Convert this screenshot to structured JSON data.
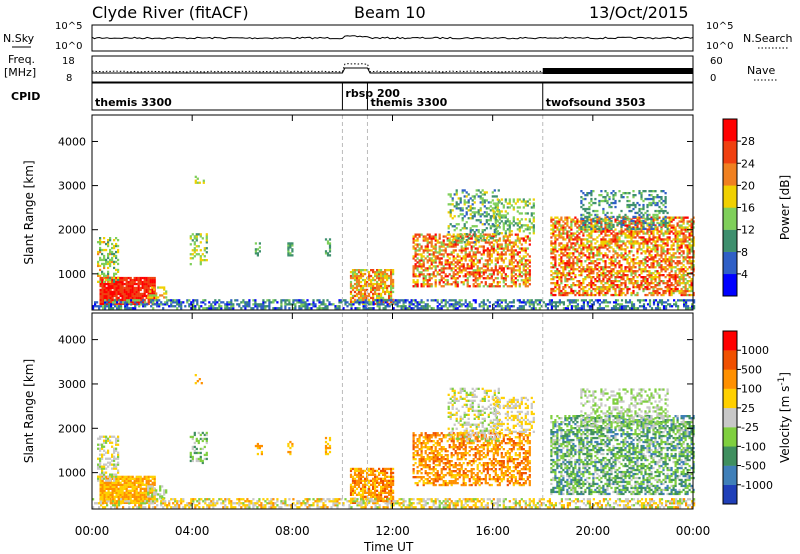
{
  "header": {
    "station": "Clyde River (fitACF)",
    "beam": "Beam 10",
    "date": "13/Oct/2015"
  },
  "noise_panel": {
    "left_label": "N.Sky",
    "right_label": "N.Search",
    "left_ticks": [
      "10^5",
      "10^0"
    ],
    "right_ticks": [
      "10^5",
      "10^0"
    ]
  },
  "freq_panel": {
    "left_label_line1": "Freq.",
    "left_label_line2": "[MHz]",
    "right_label": "Nave",
    "left_ticks": [
      "18",
      "8"
    ],
    "right_ticks": [
      "60",
      "0"
    ]
  },
  "cpid_panel": {
    "label": "CPID",
    "segments": [
      {
        "name": "themis 3300",
        "start_h": 0.0,
        "end_h": 10.0
      },
      {
        "name": "rbsp 200",
        "start_h": 10.0,
        "end_h": 11.0
      },
      {
        "name": "themis 3300",
        "start_h": 11.0,
        "end_h": 18.0
      },
      {
        "name": "twofsound 3503",
        "start_h": 18.0,
        "end_h": 24.0
      }
    ]
  },
  "chart_data": [
    {
      "type": "heatmap",
      "quantity": "power",
      "ylabel": "Slant Range [km]",
      "ylim": [
        180,
        4600
      ],
      "yticks": [
        "1000",
        "2000",
        "3000",
        "4000"
      ],
      "colorbar": {
        "label": "Power [dB]",
        "ticks": [
          "4",
          "8",
          "12",
          "16",
          "20",
          "24",
          "28"
        ],
        "colors": [
          "#0000ff",
          "#2f5fc6",
          "#3e8f6e",
          "#7fcf5a",
          "#f0d000",
          "#f08020",
          "#f04010",
          "#ff0000"
        ]
      }
    },
    {
      "type": "heatmap",
      "quantity": "velocity",
      "ylabel": "Slant Range [km]",
      "ylim": [
        180,
        4600
      ],
      "yticks": [
        "1000",
        "2000",
        "3000",
        "4000"
      ],
      "xlabel": "Time UT",
      "xticks": [
        "00:00",
        "04:00",
        "08:00",
        "12:00",
        "16:00",
        "20:00",
        "00:00"
      ],
      "colorbar": {
        "label": "Velocity [m s",
        "label_sup": "-1",
        "label_end": "]",
        "ticks": [
          "1000",
          "500",
          "100",
          "25",
          "-25",
          "-100",
          "-500",
          "-1000"
        ],
        "colors": [
          "#1f3fb8",
          "#3f7fb8",
          "#3f8f5f",
          "#7fcf3f",
          "#c8c8c8",
          "#ffd000",
          "#ff9000",
          "#f05000",
          "#ff0000"
        ]
      }
    }
  ]
}
